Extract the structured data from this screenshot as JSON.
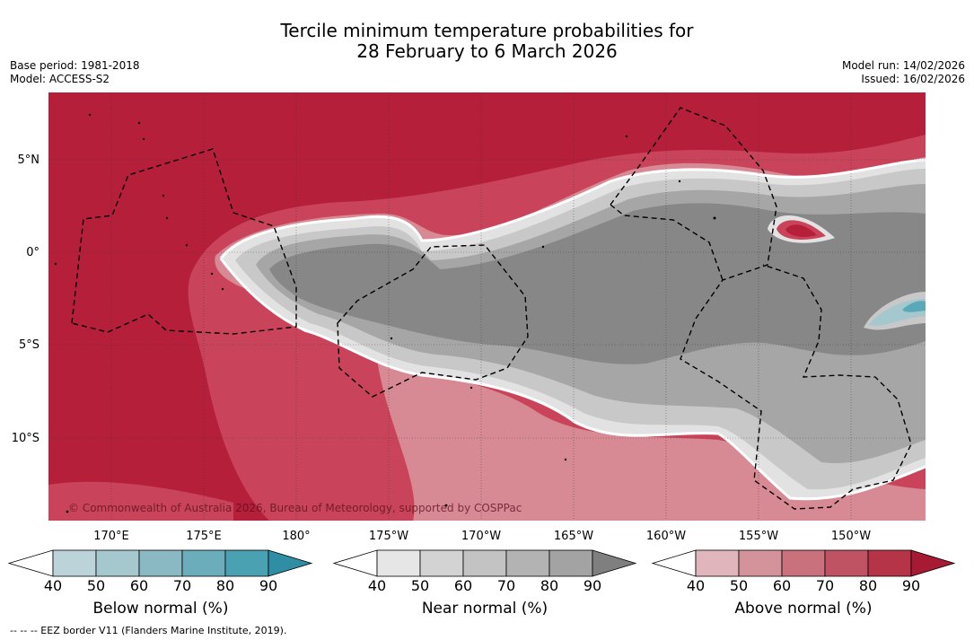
{
  "title": {
    "line1": "Tercile minimum temperature probabilities for",
    "line2": "28 February to 6 March 2026"
  },
  "meta": {
    "base_period": "Base period: 1981-2018",
    "model": "Model: ACCESS-S2",
    "model_run": "Model run: 14/02/2026",
    "issued": "Issued: 16/02/2026"
  },
  "map": {
    "copyright": "© Commonwealth of Australia 2026, Bureau of Meteorology, supported by COSPPac",
    "lat_labels": [
      "5°N",
      "0°",
      "5°S",
      "10°S"
    ],
    "lon_labels": [
      "170°E",
      "175°E",
      "180°",
      "175°W",
      "170°W",
      "165°W",
      "160°W",
      "155°W",
      "150°W"
    ],
    "colors": {
      "above_high": "#b51f3a",
      "above_mid": "#c9445a",
      "above_low": "#d88a94",
      "near_high": "#878787",
      "near_mid": "#a6a6a6",
      "near_low": "#c8c8c8",
      "below": "#5aa9ba"
    }
  },
  "colorbars": [
    {
      "label": "Below normal (%)",
      "ticks": [
        "40",
        "50",
        "60",
        "70",
        "80",
        "90"
      ],
      "colors": [
        "#bdd3da",
        "#a5c7ce",
        "#8ab8c3",
        "#6badba",
        "#4aa1b1",
        "#2f8ea3"
      ]
    },
    {
      "label": "Near normal (%)",
      "ticks": [
        "40",
        "50",
        "60",
        "70",
        "80",
        "90"
      ],
      "colors": [
        "#e6e6e6",
        "#d3d3d3",
        "#c3c3c3",
        "#b3b3b3",
        "#a3a3a3",
        "#7f7f7f"
      ]
    },
    {
      "label": "Above normal (%)",
      "ticks": [
        "40",
        "50",
        "60",
        "70",
        "80",
        "90"
      ],
      "colors": [
        "#e0b5bb",
        "#d4929b",
        "#c9717d",
        "#c05363",
        "#b63448",
        "#a71a34"
      ]
    }
  ],
  "footer": {
    "eez_note": "--  --  -- EEZ border V11 (Flanders Marine Institute, 2019)."
  }
}
